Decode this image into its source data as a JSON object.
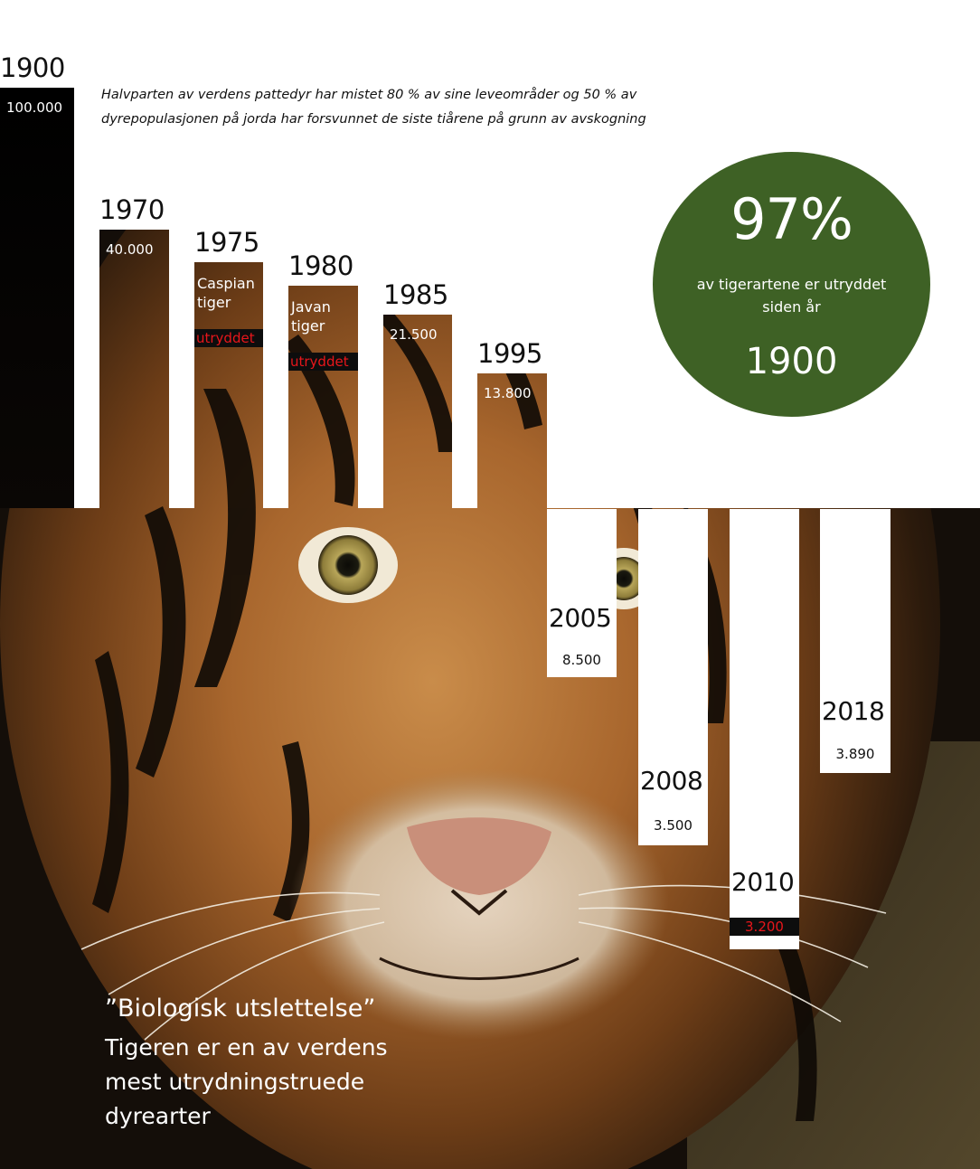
{
  "intro_text": "Halvparten av verdens pattedyr har mistet 80 % av sine leveområder og  50 % av dyrepopulasjonen på jorda har forsvunnet de siste tiårene på grunn av avskogning",
  "chart_data": {
    "type": "bar",
    "categories": [
      "1900",
      "1970",
      "1975",
      "1980",
      "1985",
      "1995",
      "2005",
      "2008",
      "2010",
      "2018"
    ],
    "values": [
      100000,
      40000,
      null,
      null,
      21500,
      13800,
      8500,
      3500,
      3200,
      3890
    ],
    "value_labels": [
      "100.000",
      "40.000",
      "",
      "",
      "21.500",
      "13.800",
      "8.500",
      "3.500",
      "3.200",
      "3.890"
    ],
    "notes": [
      "",
      "",
      "Caspian tiger",
      "Javan tiger",
      "",
      "",
      "",
      "",
      "",
      ""
    ],
    "flags": [
      "",
      "",
      "utryddet",
      "utryddet",
      "",
      "",
      "",
      "",
      "",
      ""
    ],
    "title": "",
    "xlabel": "",
    "ylabel": "",
    "ylim": [
      0,
      100000
    ],
    "grid": false,
    "legend": "none"
  },
  "highlight": {
    "percent": "97%",
    "text": "av tigerartene er utryddet siden år",
    "year": "1900"
  },
  "quote": {
    "title": "”Biologisk utslettelse”",
    "body": "Tigeren er en av verdens mest utrydningstruede dyrearter"
  },
  "colors": {
    "circle_green": "#3e6125",
    "extinct_red": "#e8161b",
    "highlight_value_red": "#e8161b",
    "label_bar_black": "#0d0d0d"
  }
}
